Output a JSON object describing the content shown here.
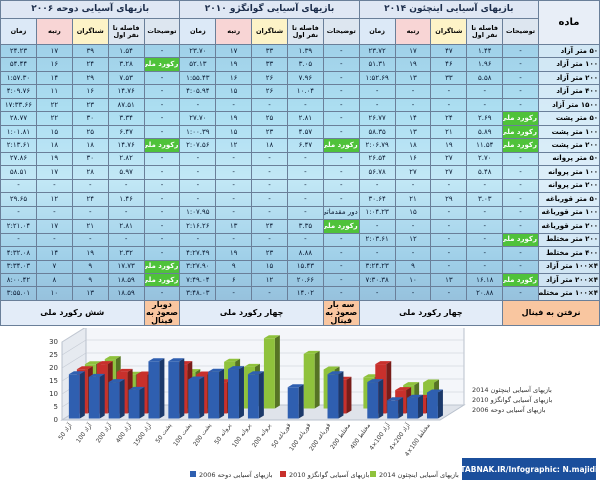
{
  "table": {
    "event_header": "ماده",
    "groups": [
      {
        "title": "بازیهای آسیایی اینچئون ۲۰۱۴",
        "columns": [
          "توضیحات",
          "فاصله تا نفر اول",
          "شناگران",
          "رتبه",
          "زمان"
        ]
      },
      {
        "title": "بازیهای آسیایی گوانگژو ۲۰۱۰",
        "columns": [
          "توضیحات",
          "فاصله تا نفر اول",
          "شناگران",
          "رتبه",
          "زمان"
        ]
      },
      {
        "title": "بازیهای آسیایی دوحه ۲۰۰۶",
        "columns": [
          "توضیحات",
          "فاصله تا نفر اول",
          "شناگران",
          "رتبه",
          "زمان"
        ]
      }
    ],
    "rows": [
      [
        "۵۰ متر آزاد",
        "-",
        "۱.۴۴",
        "۴۷",
        "۱۷",
        "۲۳.۷۲",
        "-",
        "۱.۳۹",
        "۳۳",
        "۱۷",
        "۲۳.۷۰",
        "-",
        "۱.۵۴",
        "۳۹",
        "۱۷",
        "۲۴.۲۳"
      ],
      [
        "۱۰۰ متر آزاد",
        "-",
        "۱.۹۶",
        "۴۶",
        "۱۹",
        "۵۱.۳۱",
        "-",
        "۳.۰۵",
        "۳۳",
        "۱۹",
        "۵۲.۱۳",
        "رکورد ملی",
        "۳.۲۸",
        "۲۴",
        "۱۶",
        "۵۴.۴۴"
      ],
      [
        "۲۰۰ متر آزاد",
        "-",
        "۵.۵۸",
        "۳۳",
        "۱۳",
        "۱:۵۲.۶۹",
        "-",
        "۷.۹۶",
        "۲۶",
        "۱۶",
        "۱:۵۵.۴۳",
        "-",
        "۷.۵۳",
        "۲۹",
        "۱۴",
        "۱:۵۷.۳۰"
      ],
      [
        "۴۰۰ متر آزاد",
        "-",
        "-",
        "-",
        "-",
        "-",
        "-",
        "۱۰.۰۴",
        "۲۶",
        "۱۵",
        "۴:۰۵.۹۴",
        "-",
        "۱۴.۷۶",
        "۱۶",
        "۱۱",
        "۴:۰۹.۷۶"
      ],
      [
        "۱۵۰۰ متر آزاد",
        "-",
        "-",
        "-",
        "-",
        "-",
        "-",
        "-",
        "-",
        "-",
        "-",
        "-",
        "۸۷.۵۱",
        "۲۳",
        "۲۲",
        "۱۷:۳۳.۶۶"
      ],
      [
        "۵۰ متر پشت",
        "رکورد ملی",
        "۲.۶۹",
        "۲۴",
        "۱۴",
        "۲۶.۷۷",
        "-",
        "۲.۸۱",
        "۲۵",
        "۱۹",
        "۲۷.۷۰",
        "-",
        "۳.۳۴",
        "۳۰",
        "۲۲",
        "۲۸.۷۷"
      ],
      [
        "۱۰۰ متر پشت",
        "رکورد ملی",
        "۵.۸۹",
        "۲۱",
        "۱۳",
        "۵۸.۳۵",
        "-",
        "۴.۵۷",
        "۲۳",
        "۱۵",
        "۱:۰۰.۳۹",
        "-",
        "۶.۴۷",
        "۲۵",
        "۱۵",
        "۱:۰۱.۸۱"
      ],
      [
        "۲۰۰ متر پشت",
        "رکورد ملی",
        "۱۱.۵۴",
        "۱۹",
        "۱۸",
        "۲:۰۶.۷۹",
        "رکورد ملی",
        "۶.۴۷",
        "۱۸",
        "۱۲",
        "۲:۰۷.۵۶",
        "رکورد ملی",
        "۱۴.۷۶",
        "۱۸",
        "۱۸",
        "۲:۱۳.۶۱"
      ],
      [
        "۵۰ متر پروانه",
        "-",
        "۲.۷۰",
        "۲۷",
        "۱۶",
        "۲۶.۵۴",
        "-",
        "-",
        "-",
        "-",
        "-",
        "-",
        "۲.۸۲",
        "۳۰",
        "۱۹",
        "۲۷.۸۶"
      ],
      [
        "۱۰۰ متر پروانه",
        "-",
        "۵.۴۸",
        "۲۷",
        "۲۷",
        "۵۶.۷۸",
        "-",
        "-",
        "-",
        "-",
        "-",
        "-",
        "۵.۹۷",
        "۲۸",
        "۱۷",
        "۵۸.۵۱"
      ],
      [
        "۲۰۰ متر پروانه",
        "-",
        "-",
        "-",
        "-",
        "-",
        "-",
        "-",
        "-",
        "-",
        "-",
        "-",
        "-",
        "-",
        "-",
        "-"
      ],
      [
        "۵۰ متر قورباغه",
        "-",
        "۳.۰۳",
        "۲۹",
        "۲۱",
        "۳۰.۶۴",
        "-",
        "-",
        "-",
        "-",
        "-",
        "-",
        "۱.۴۶",
        "۲۴",
        "۱۲",
        "۲۹.۶۵"
      ],
      [
        "۱۰۰ متر قورباغه",
        "-",
        "-",
        "-",
        "۱۵",
        "۱:۰۴.۲۳",
        "دور مقدماتی",
        "-",
        "-",
        "-",
        "۱:۰۷.۹۵",
        "-",
        "-",
        "-",
        "-",
        "-"
      ],
      [
        "۲۰۰ متر قورباغه",
        "-",
        "-",
        "-",
        "-",
        "-",
        "رکورد ملی",
        "۳.۳۵",
        "۲۴",
        "۱۳",
        "۲:۱۶.۲۶",
        "-",
        "۲.۸۱",
        "۲۱",
        "۱۷",
        "۲:۲۱.۰۴"
      ],
      [
        "۲۰۰ متر مختلط",
        "رکورد ملی",
        "-",
        "-",
        "۱۲",
        "۲:۰۳.۶۱",
        "-",
        "-",
        "-",
        "-",
        "-",
        "-",
        "-",
        "-",
        "-",
        "-"
      ],
      [
        "۴۰۰ متر مختلط",
        "-",
        "-",
        "-",
        "-",
        "-",
        "-",
        "۸.۸۸",
        "۲۳",
        "۱۹",
        "۴:۲۷.۴۹",
        "-",
        "۲.۳۲",
        "۱۹",
        "۱۴",
        "۴:۳۲.۰۸"
      ],
      [
        "۴×۱۰۰ متر آزاد",
        "-",
        "-",
        "-",
        "۹",
        "۳:۲۴.۲۳",
        "-",
        "۱۵.۴۳",
        "۱۵",
        "۹",
        "۳:۲۷.۹۰",
        "رکورد ملی",
        "۱۷.۷۳",
        "۹",
        "۷",
        "۳:۳۴.۰۳"
      ],
      [
        "۴×۲۰۰ متر آزاد",
        "رکورد ملی",
        "۱۶.۱۸",
        "۱۳",
        "۱۰",
        "۷:۳۰.۳۸",
        "-",
        "۲۰.۶۶",
        "۱۲",
        "۶",
        "۷:۴۹.۰۴",
        "رکورد ملی",
        "۱۸.۵۹",
        "۹",
        "۸",
        "۸:۰۰.۴۲"
      ],
      [
        "۴×۱۰۰ متر مختلط",
        "-",
        "۲۰.۸۸",
        "-",
        "-",
        "-",
        "-",
        "۱۴.۰۲",
        "-",
        "-",
        "۳:۴۸.۰۳",
        "-",
        "۱۸.۵۹",
        "۱۳",
        "۱۰",
        "۳:۵۵.۰۱"
      ]
    ],
    "footer": [
      "نرفتن به فینال",
      "چهار رکورد ملی",
      "سه بار صعود به فینال",
      "چهار رکورد ملی",
      "دوبار صعود به فینال",
      "شش رکورد ملی"
    ]
  },
  "chart_data": {
    "type": "bar3d",
    "categories": [
      "50 آزاد",
      "100 آزاد",
      "200 آزاد",
      "400 آزاد",
      "1500 آزاد",
      "50 پشت",
      "100 پشت",
      "200 پشت",
      "50 پروانه",
      "100 پروانه",
      "200 پروانه",
      "50 قورباغه",
      "100 قورباغه",
      "200 قورباغه",
      "200 مختلط",
      "400 مختلط",
      "4×100 آزاد",
      "4×200 آزاد",
      "4×100 مختلط"
    ],
    "series": [
      {
        "name": "بازیهای آسیایی دوحه 2006",
        "color": "#2f5fb0",
        "values": [
          17,
          16,
          14,
          11,
          22,
          22,
          15,
          18,
          19,
          17,
          null,
          12,
          null,
          17,
          null,
          14,
          7,
          8,
          10
        ]
      },
      {
        "name": "بازیهای آسیایی گوانگژو 2010",
        "color": "#c8302c",
        "values": [
          17,
          19,
          16,
          15,
          null,
          19,
          15,
          12,
          null,
          null,
          null,
          null,
          null,
          13,
          null,
          19,
          9,
          6,
          null
        ]
      },
      {
        "name": "بازیهای آسیایی اینچئون 2014",
        "color": "#8fc23c",
        "values": [
          17,
          19,
          13,
          null,
          null,
          14,
          13,
          18,
          16,
          27,
          null,
          21,
          15,
          null,
          12,
          null,
          9,
          10,
          null
        ]
      }
    ],
    "ylim": [
      0,
      30
    ],
    "yticks": [
      0,
      5,
      10,
      15,
      20,
      25,
      30
    ],
    "grid": true,
    "source": "TABNAK.IR/Infographic: N.majidi"
  }
}
